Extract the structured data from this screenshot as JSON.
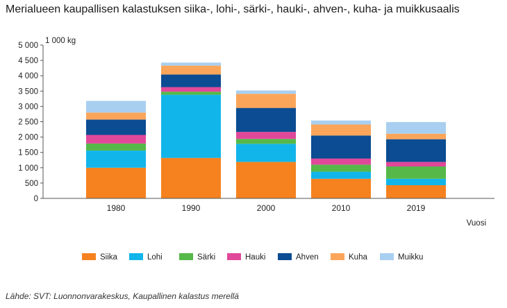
{
  "title": "Merialueen kaupallisen kalastuksen siika-, lohi-, särki-, hauki-, ahven-, kuha- ja muikkusaalis",
  "source": "Lähde: SVT: Luonnonvarakeskus, Kaupallinen kalastus merellä",
  "chart_data": {
    "type": "bar",
    "stacked": true,
    "title": "Merialueen kaupallisen kalastuksen siika-, lohi-, särki-, hauki-, ahven-, kuha- ja muikkusaalis",
    "xlabel": "Vuosi",
    "ylabel": "1 000 kg",
    "ylim": [
      0,
      5000
    ],
    "yticks": [
      0,
      500,
      1000,
      1500,
      2000,
      2500,
      3000,
      3500,
      4000,
      4500,
      5000
    ],
    "ytick_labels": [
      "0",
      "500",
      "1 000",
      "1 500",
      "2 000",
      "2 500",
      "3 000",
      "3 500",
      "4 000",
      "4 500",
      "5 000"
    ],
    "grid": false,
    "legend_position": "bottom",
    "categories": [
      "1980",
      "1990",
      "2000",
      "2010",
      "2019"
    ],
    "series": [
      {
        "name": "Siika",
        "color": "#f5821f",
        "values": [
          1000,
          1320,
          1190,
          640,
          430
        ]
      },
      {
        "name": "Lohi",
        "color": "#12b5ea",
        "values": [
          560,
          2060,
          590,
          230,
          210
        ]
      },
      {
        "name": "Särki",
        "color": "#56b848",
        "values": [
          230,
          100,
          160,
          230,
          400
        ]
      },
      {
        "name": "Hauki",
        "color": "#e0489a",
        "values": [
          280,
          150,
          230,
          200,
          150
        ]
      },
      {
        "name": "Ahven",
        "color": "#0b4c92",
        "values": [
          500,
          410,
          780,
          750,
          740
        ]
      },
      {
        "name": "Kuha",
        "color": "#fba55a",
        "values": [
          230,
          290,
          460,
          360,
          180
        ]
      },
      {
        "name": "Muikku",
        "color": "#a9cff0",
        "values": [
          380,
          100,
          110,
          130,
          380
        ]
      }
    ]
  }
}
